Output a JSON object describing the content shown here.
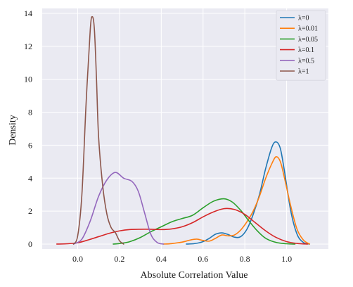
{
  "chart_data": {
    "type": "line",
    "title": "",
    "xlabel": "Absolute Correlation Value",
    "ylabel": "Density",
    "xlim": [
      -0.17,
      1.2
    ],
    "ylim": [
      -0.3,
      14.3
    ],
    "xticks": [
      0.0,
      0.2,
      0.4,
      0.6,
      0.8,
      1.0
    ],
    "xtick_labels": [
      "0.0",
      "0.2",
      "0.4",
      "0.6",
      "0.8",
      "1.0"
    ],
    "yticks": [
      0,
      2,
      4,
      6,
      8,
      10,
      12,
      14
    ],
    "ytick_labels": [
      "0",
      "2",
      "4",
      "6",
      "8",
      "10",
      "12",
      "14"
    ],
    "grid": true,
    "legend_position": "top-right",
    "series": [
      {
        "name": "λ=0",
        "color": "#1f77b4",
        "x": [
          0.52,
          0.56,
          0.6,
          0.63,
          0.66,
          0.69,
          0.72,
          0.75,
          0.78,
          0.81,
          0.84,
          0.87,
          0.9,
          0.93,
          0.95,
          0.97,
          0.99,
          1.02,
          1.05,
          1.08,
          1.11
        ],
        "y": [
          0.0,
          0.03,
          0.15,
          0.35,
          0.6,
          0.68,
          0.58,
          0.42,
          0.45,
          0.9,
          1.8,
          3.0,
          4.6,
          5.9,
          6.2,
          5.8,
          4.4,
          2.0,
          0.6,
          0.1,
          0.0
        ]
      },
      {
        "name": "λ=0.01",
        "color": "#ff7f0e",
        "x": [
          0.41,
          0.45,
          0.5,
          0.54,
          0.57,
          0.6,
          0.63,
          0.66,
          0.69,
          0.72,
          0.75,
          0.78,
          0.81,
          0.84,
          0.87,
          0.9,
          0.93,
          0.95,
          0.97,
          0.99,
          1.02,
          1.05,
          1.08,
          1.11
        ],
        "y": [
          0.0,
          0.03,
          0.12,
          0.25,
          0.3,
          0.22,
          0.18,
          0.35,
          0.55,
          0.5,
          0.55,
          0.85,
          1.35,
          2.0,
          2.9,
          4.0,
          4.9,
          5.3,
          5.0,
          4.0,
          2.3,
          0.9,
          0.25,
          0.0
        ]
      },
      {
        "name": "λ=0.05",
        "color": "#2ca02c",
        "x": [
          0.17,
          0.21,
          0.25,
          0.3,
          0.35,
          0.4,
          0.45,
          0.5,
          0.55,
          0.6,
          0.65,
          0.7,
          0.74,
          0.78,
          0.82,
          0.86,
          0.9,
          0.95,
          1.0,
          1.04
        ],
        "y": [
          0.0,
          0.05,
          0.15,
          0.4,
          0.75,
          1.05,
          1.35,
          1.55,
          1.75,
          2.2,
          2.6,
          2.75,
          2.55,
          2.05,
          1.4,
          0.8,
          0.35,
          0.1,
          0.02,
          0.0
        ]
      },
      {
        "name": "λ=0.1",
        "color": "#d62728",
        "x": [
          -0.1,
          -0.05,
          0.0,
          0.05,
          0.1,
          0.15,
          0.2,
          0.25,
          0.3,
          0.35,
          0.4,
          0.45,
          0.5,
          0.55,
          0.6,
          0.65,
          0.7,
          0.75,
          0.8,
          0.85,
          0.9,
          0.95,
          1.0,
          1.05,
          1.1
        ],
        "y": [
          0.0,
          0.02,
          0.08,
          0.25,
          0.45,
          0.65,
          0.8,
          0.88,
          0.9,
          0.9,
          0.88,
          0.92,
          1.05,
          1.3,
          1.65,
          1.95,
          2.15,
          2.1,
          1.8,
          1.3,
          0.8,
          0.4,
          0.15,
          0.04,
          0.0
        ]
      },
      {
        "name": "λ=0.5",
        "color": "#9467bd",
        "x": [
          -0.02,
          0.02,
          0.06,
          0.1,
          0.14,
          0.18,
          0.22,
          0.26,
          0.29,
          0.32,
          0.35,
          0.38,
          0.41
        ],
        "y": [
          0.0,
          0.3,
          1.4,
          2.9,
          3.9,
          4.35,
          4.0,
          3.8,
          3.2,
          1.9,
          0.6,
          0.1,
          0.0
        ]
      },
      {
        "name": "λ=1",
        "color": "#8c564b",
        "x": [
          -0.02,
          0.0,
          0.02,
          0.04,
          0.06,
          0.07,
          0.08,
          0.09,
          0.1,
          0.12,
          0.14,
          0.16,
          0.18,
          0.2,
          0.22
        ],
        "y": [
          0.0,
          0.5,
          3.0,
          8.5,
          13.0,
          13.8,
          13.0,
          10.0,
          6.5,
          3.5,
          1.8,
          1.0,
          0.7,
          0.2,
          0.0
        ]
      }
    ]
  }
}
